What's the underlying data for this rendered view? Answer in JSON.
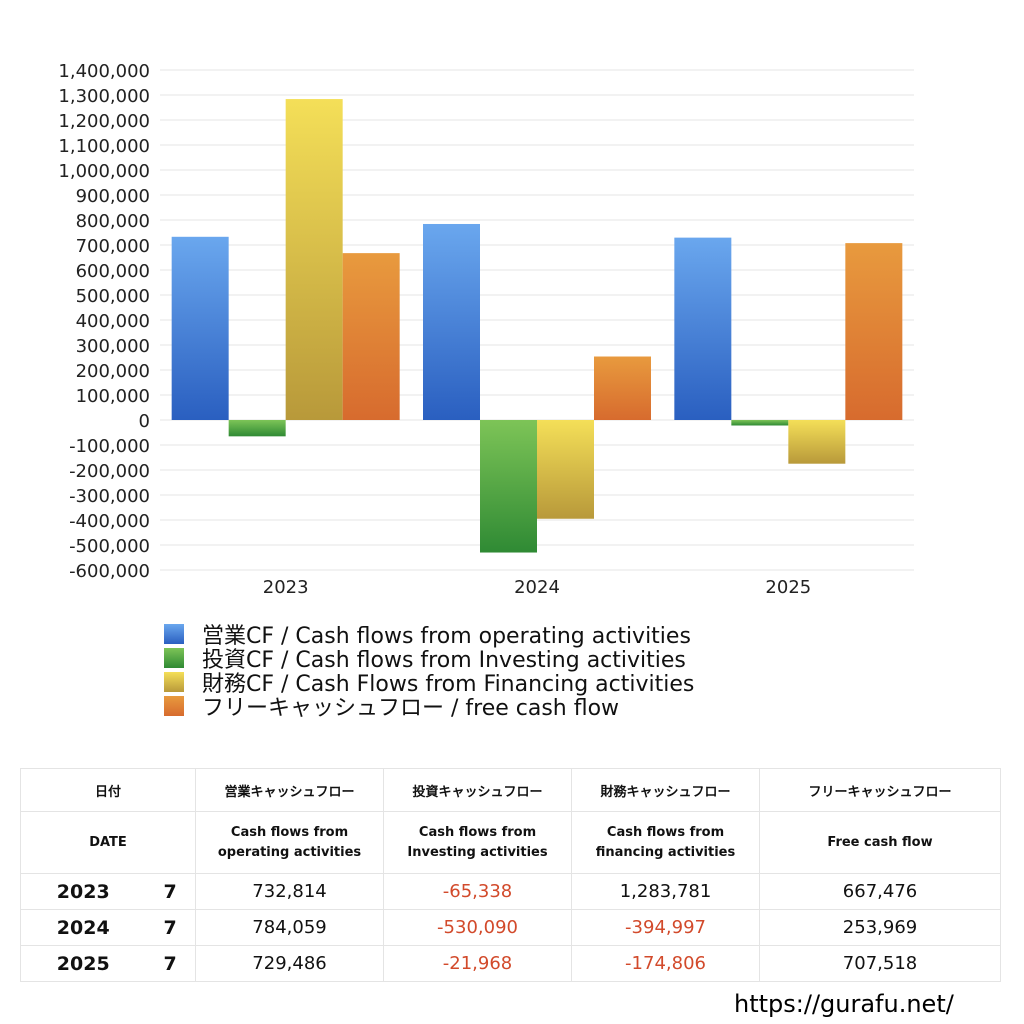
{
  "chart_data": {
    "type": "bar",
    "categories": [
      "2023",
      "2024",
      "2025"
    ],
    "series": [
      {
        "name": "営業CF / Cash flows from operating activities",
        "values": [
          732814,
          784059,
          729486
        ]
      },
      {
        "name": "投資CF / Cash flows from Investing activities",
        "values": [
          -65338,
          -530090,
          -21968
        ]
      },
      {
        "name": "財務CF / Cash Flows from Financing activities",
        "values": [
          1283781,
          -394997,
          -174806
        ]
      },
      {
        "name": "フリーキャッシュフロー / free cash flow",
        "values": [
          667476,
          253969,
          707518
        ]
      }
    ],
    "ylim": [
      -600000,
      1400000
    ],
    "ytick_step": 100000,
    "yticks": [
      "1,400,000",
      "1,300,000",
      "1,200,000",
      "1,100,000",
      "1,000,000",
      "900,000",
      "800,000",
      "700,000",
      "600,000",
      "500,000",
      "400,000",
      "300,000",
      "200,000",
      "100,000",
      "0",
      "-100,000",
      "-200,000",
      "-300,000",
      "-400,000",
      "-500,000",
      "-600,000"
    ],
    "grid": true,
    "legend_position": "bottom",
    "colors": {
      "operating": [
        "#6aa7ee",
        "#2a5fc0"
      ],
      "investing": [
        "#7dc457",
        "#2f8a34"
      ],
      "financing": [
        "#f4df58",
        "#b8993a"
      ],
      "free": [
        "#e89a3e",
        "#d76b2e"
      ]
    }
  },
  "table": {
    "headers_jp": [
      "日付",
      "営業キャッシュフロー",
      "投資キャッシュフロー",
      "財務キャッシュフロー",
      "フリーキャッシュフロー"
    ],
    "headers_en": [
      [
        "DATE"
      ],
      [
        "Cash flows from",
        "operating activities"
      ],
      [
        "Cash flows from",
        "Investing activities"
      ],
      [
        "Cash flows from",
        "financing activities"
      ],
      [
        "Free cash flow"
      ]
    ],
    "rows": [
      {
        "year": "2023",
        "month": "7",
        "operating": "732,814",
        "investing": "-65,338",
        "financing": "1,283,781",
        "free": "667,476"
      },
      {
        "year": "2024",
        "month": "7",
        "operating": "784,059",
        "investing": "-530,090",
        "financing": "-394,997",
        "free": "253,969"
      },
      {
        "year": "2025",
        "month": "7",
        "operating": "729,486",
        "investing": "-21,968",
        "financing": "-174,806",
        "free": "707,518"
      }
    ]
  },
  "site_url": "https://gurafu.net/"
}
